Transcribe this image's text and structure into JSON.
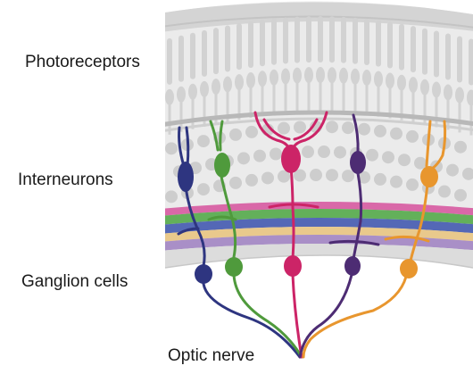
{
  "labels": {
    "photoreceptors": "Photoreceptors",
    "interneurons": "Interneurons",
    "ganglion_cells": "Ganglion cells",
    "optic_nerve": "Optic nerve"
  },
  "colors": {
    "navy": "#2e3580",
    "green": "#4f9a3c",
    "magenta": "#cc2467",
    "purple": "#4d2c73",
    "orange": "#e8962e",
    "band_pink": "#d968a8",
    "band_green": "#63b05a",
    "band_blue": "#5468b6",
    "band_tan": "#e9c98c",
    "band_lavender": "#a98fc7",
    "tissue_gray": "#d8d8d8"
  }
}
